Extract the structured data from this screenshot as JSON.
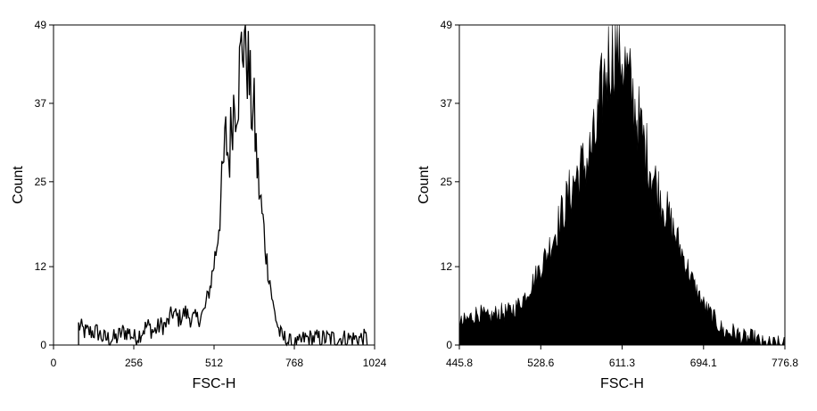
{
  "chart_data": [
    {
      "type": "histogram",
      "style": "outline",
      "xlabel": "FSC-H",
      "ylabel": "Count",
      "xlim": [
        0,
        1024
      ],
      "ylim": [
        0,
        49
      ],
      "x_ticks": [
        "0",
        "256",
        "512",
        "768",
        "1024"
      ],
      "y_ticks": [
        "0",
        "12",
        "25",
        "37",
        "49"
      ],
      "grid": false,
      "bins": {
        "x": [
          80,
          100,
          120,
          140,
          160,
          180,
          200,
          220,
          240,
          260,
          280,
          300,
          320,
          340,
          360,
          380,
          400,
          420,
          440,
          460,
          480,
          500,
          510,
          520,
          530,
          540,
          550,
          560,
          570,
          580,
          590,
          600,
          610,
          620,
          630,
          640,
          650,
          660,
          670,
          680,
          690,
          700,
          710,
          720,
          730,
          740,
          760,
          780,
          800,
          1000
        ],
        "counts": [
          3,
          2,
          2,
          2,
          1,
          1,
          1,
          2,
          2,
          1,
          2,
          3,
          2,
          3,
          3,
          5,
          4,
          5,
          4,
          4,
          5,
          9,
          12,
          15,
          20,
          26,
          32,
          28,
          36,
          38,
          40,
          45,
          49,
          43,
          37,
          35,
          27,
          22,
          18,
          13,
          10,
          6,
          4,
          2,
          1,
          1,
          0,
          0,
          1,
          1
        ]
      }
    },
    {
      "type": "histogram",
      "style": "filled",
      "xlabel": "FSC-H",
      "ylabel": "Count",
      "xlim": [
        445.8,
        776.8
      ],
      "ylim": [
        0,
        49
      ],
      "x_ticks": [
        "445.8",
        "528.6",
        "611.3",
        "694.1",
        "776.8"
      ],
      "y_ticks": [
        "0",
        "12",
        "25",
        "37",
        "49"
      ],
      "grid": false,
      "bins": {
        "x": [
          445.8,
          455,
          465,
          475,
          485,
          495,
          505,
          515,
          525,
          535,
          545,
          555,
          565,
          575,
          585,
          590,
          595,
          600,
          605,
          610,
          615,
          620,
          625,
          630,
          635,
          645,
          655,
          665,
          675,
          685,
          695,
          705,
          715,
          725,
          735,
          745,
          755,
          765,
          776.8
        ],
        "counts": [
          3,
          4,
          5,
          4,
          5,
          5,
          6,
          8,
          11,
          14,
          18,
          22,
          26,
          28,
          32,
          38,
          42,
          45,
          46,
          45,
          42,
          39,
          36,
          33,
          30,
          25,
          21,
          17,
          13,
          9,
          6,
          4,
          2,
          2,
          1,
          1,
          0,
          0,
          0
        ]
      }
    }
  ]
}
